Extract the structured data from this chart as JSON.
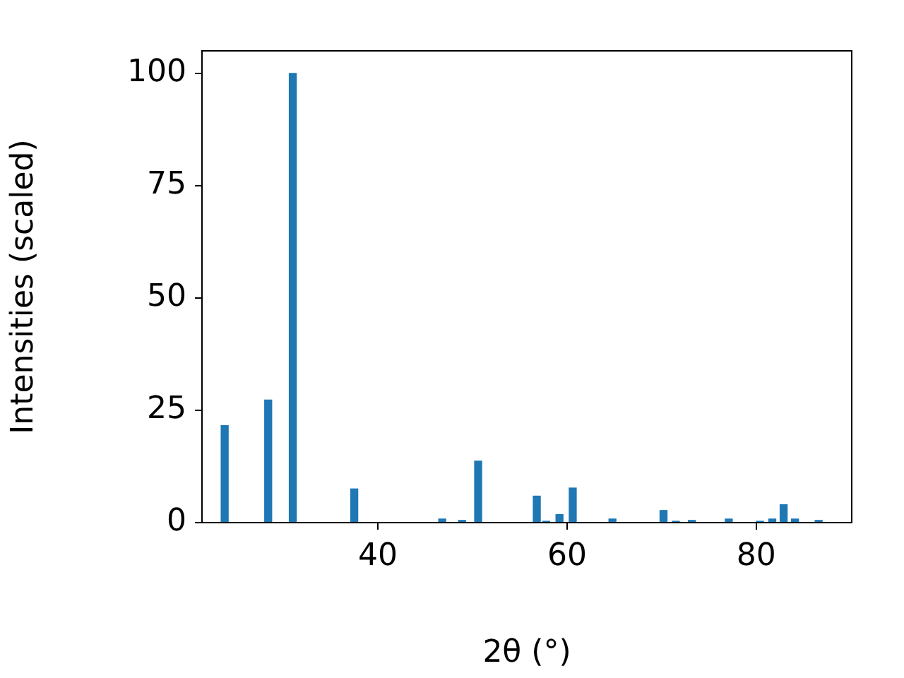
{
  "chart_data": {
    "type": "bar",
    "xlabel": "2θ (°)",
    "ylabel": "Intensities (scaled)",
    "x": [
      23.8,
      28.4,
      31.0,
      37.5,
      46.8,
      48.9,
      50.6,
      56.8,
      57.8,
      59.2,
      60.6,
      64.8,
      70.2,
      71.5,
      73.2,
      77.1,
      80.4,
      81.7,
      82.9,
      84.1,
      86.6
    ],
    "values": [
      21.6,
      27.3,
      100,
      7.5,
      0.8,
      0.5,
      13.7,
      5.9,
      0.3,
      1.8,
      7.7,
      0.8,
      2.7,
      0.3,
      0.5,
      0.8,
      0.3,
      0.8,
      4.0,
      0.8,
      0.5
    ],
    "color": "#1f77b4",
    "xlim": [
      21.4,
      90.1
    ],
    "xticks": [
      40,
      60,
      80
    ],
    "ylim": [
      0,
      105
    ],
    "yticks": [
      0,
      25,
      50,
      75,
      100
    ],
    "grid": false,
    "legend": false
  }
}
